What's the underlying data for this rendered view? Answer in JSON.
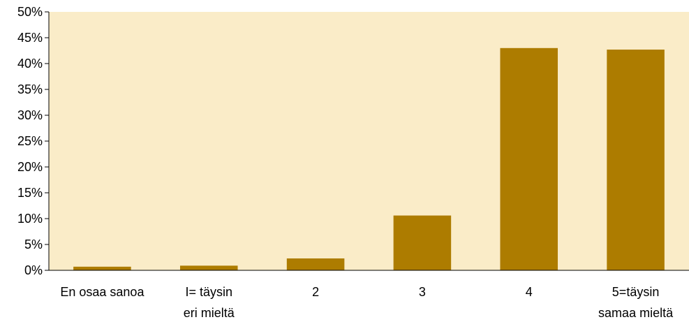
{
  "chart_data": {
    "type": "bar",
    "categories": [
      [
        "En osaa sanoa"
      ],
      [
        "I= täysin",
        "eri mieltä"
      ],
      [
        "2"
      ],
      [
        "3"
      ],
      [
        "4"
      ],
      [
        "5=täysin",
        "samaa mieltä"
      ]
    ],
    "values": [
      0.7,
      0.9,
      2.3,
      10.6,
      43.0,
      42.7
    ],
    "ylim": [
      0,
      50
    ],
    "yticks": [
      0,
      5,
      10,
      15,
      20,
      25,
      30,
      35,
      40,
      45,
      50
    ],
    "ytick_labels": [
      "0%",
      "5%",
      "10%",
      "15%",
      "20%",
      "25%",
      "30%",
      "35%",
      "40%",
      "45%",
      "50%"
    ],
    "grid": false,
    "colors": {
      "bar": "#ad7c00",
      "plot_background": "#faecc8",
      "axis": "#000000"
    }
  }
}
